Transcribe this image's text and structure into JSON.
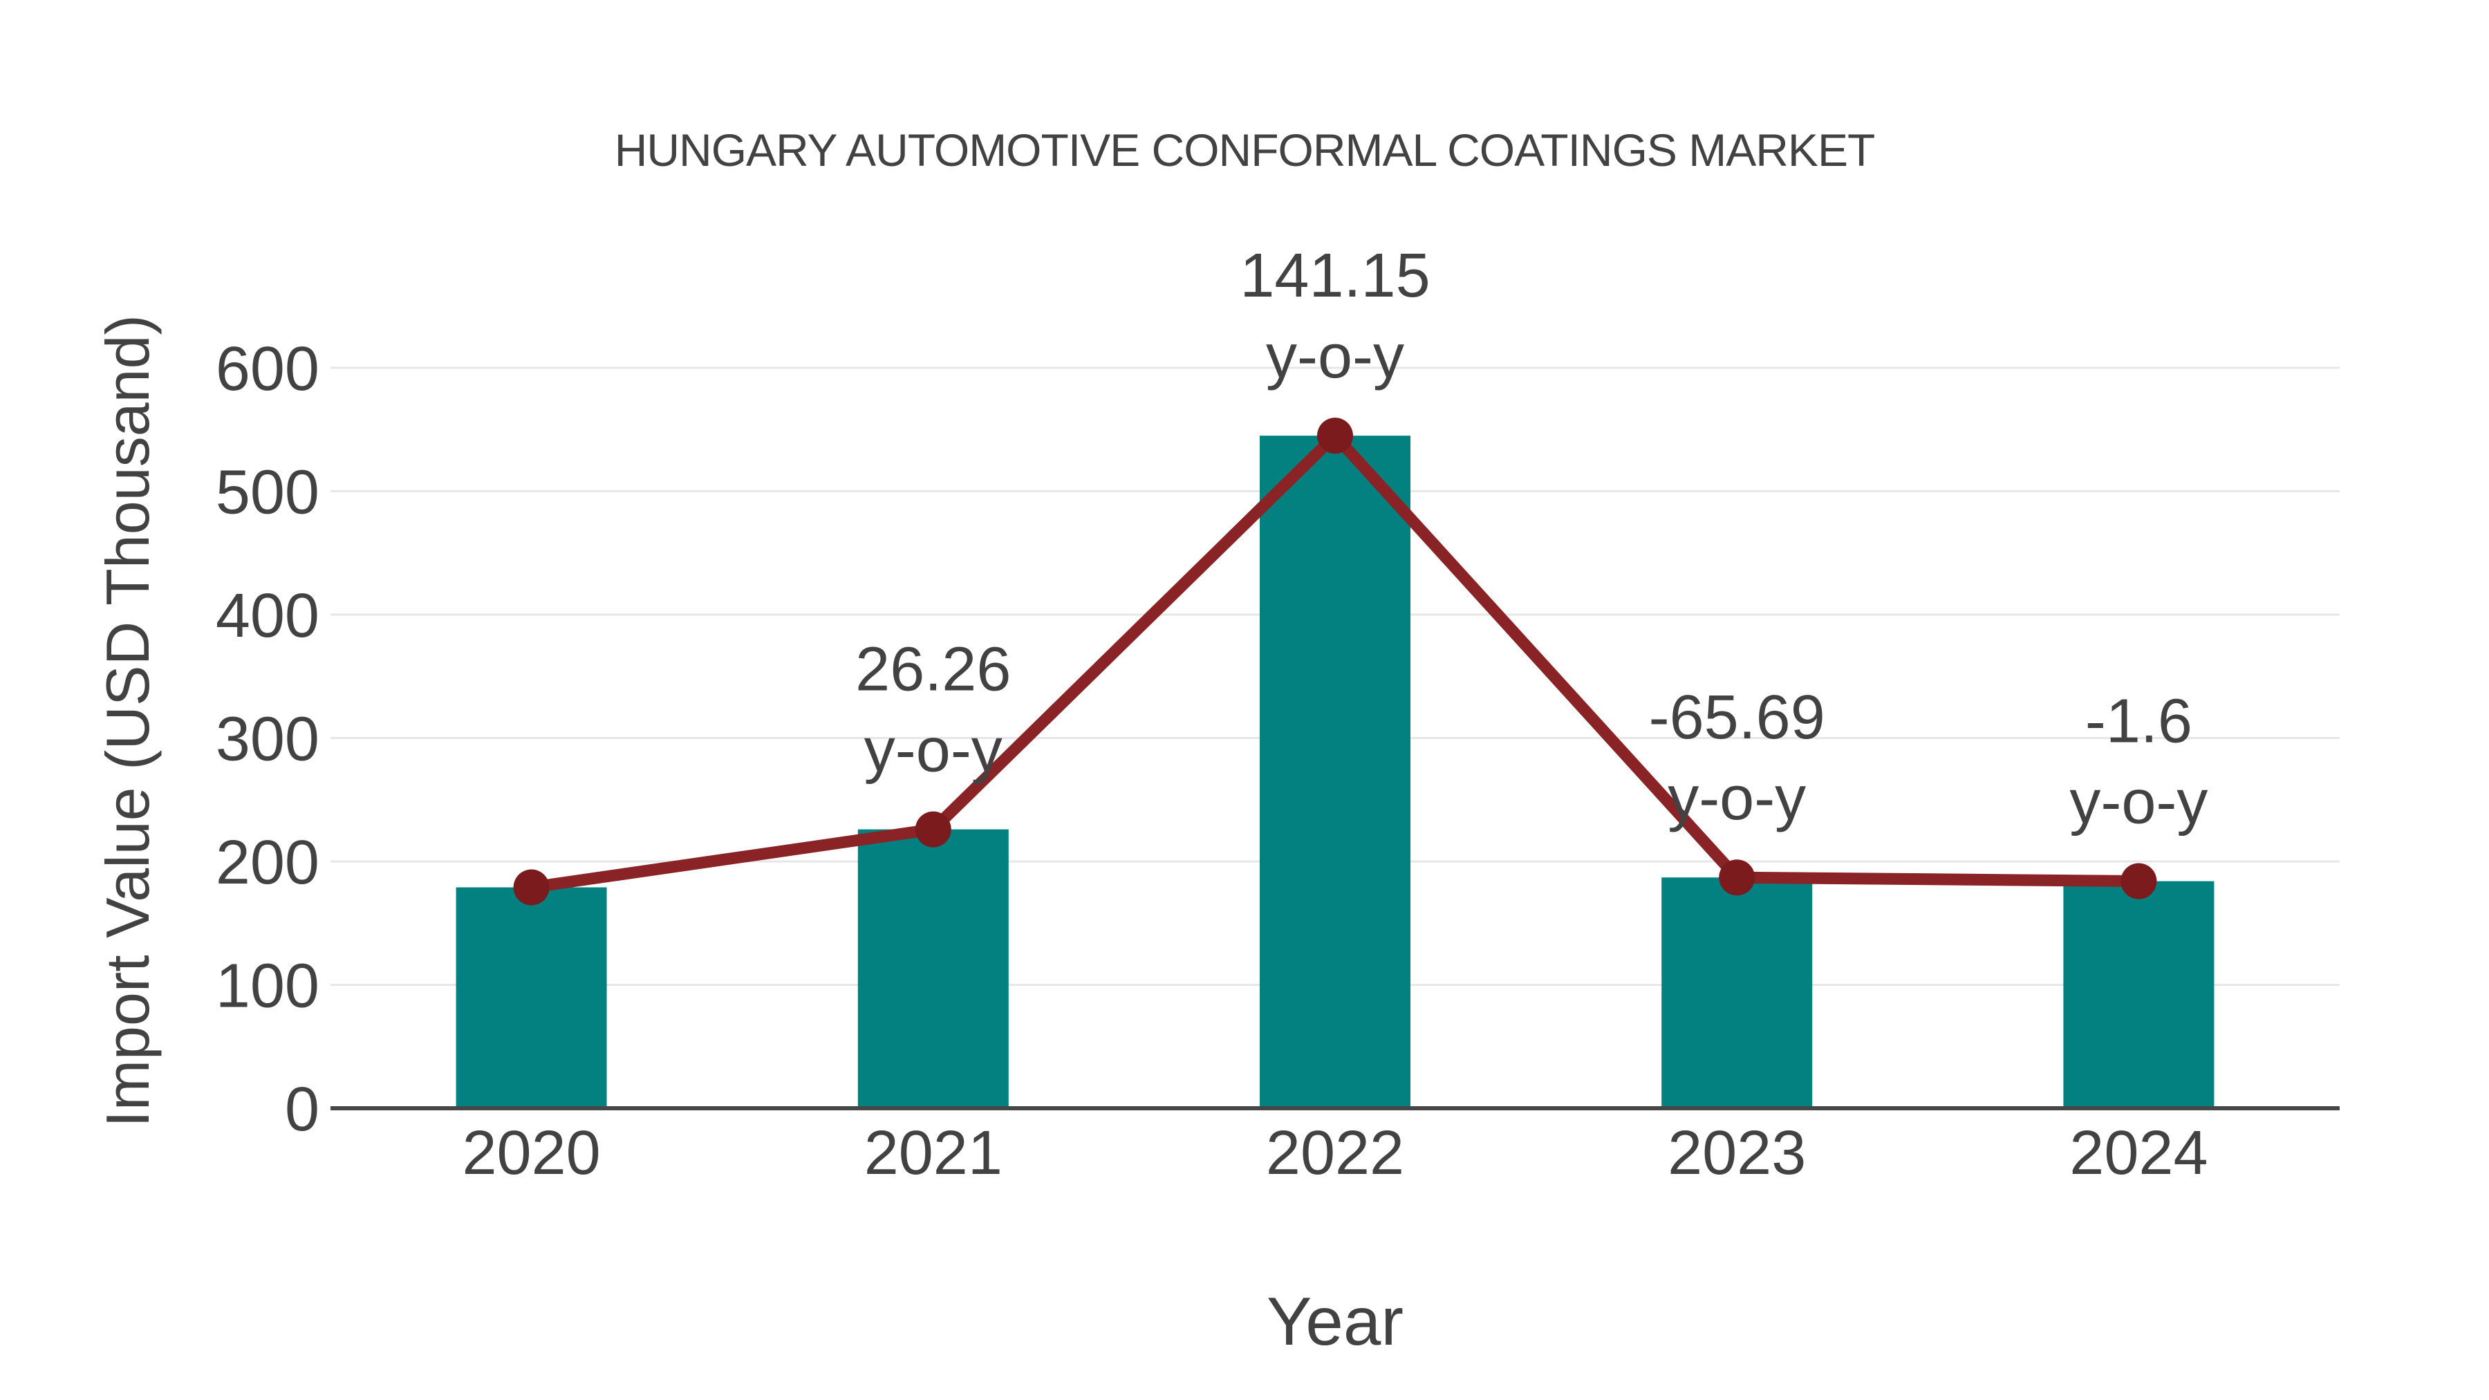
{
  "chart_data": {
    "type": "combo",
    "title": "HUNGARY AUTOMOTIVE CONFORMAL COATINGS MARKET",
    "xlabel": "Year",
    "ylabel": "Import Value (USD Thousand)",
    "categories": [
      "2020",
      "2021",
      "2022",
      "2023",
      "2024"
    ],
    "series": [
      {
        "name": "Import Value bars",
        "type": "bar",
        "values": [
          179,
          226,
          545,
          187,
          184
        ]
      },
      {
        "name": "Import Value trend line",
        "type": "line",
        "values": [
          179,
          226,
          545,
          187,
          184
        ]
      }
    ],
    "annotations": [
      {
        "category": "2021",
        "value_label": "26.26",
        "unit_label": "y-o-y"
      },
      {
        "category": "2022",
        "value_label": "141.15",
        "unit_label": "y-o-y"
      },
      {
        "category": "2023",
        "value_label": "-65.69",
        "unit_label": "y-o-y"
      },
      {
        "category": "2024",
        "value_label": "-1.6",
        "unit_label": "y-o-y"
      }
    ],
    "yoy_percent": {
      "2021": 26.26,
      "2022": 141.15,
      "2023": -65.69,
      "2024": -1.6
    },
    "yticks": [
      0,
      100,
      200,
      300,
      400,
      500,
      600
    ],
    "ylim": [
      0,
      600
    ],
    "grid": true,
    "legend": "none",
    "colors": {
      "bar": "#028180",
      "line": "#8a2326",
      "marker": "#7c1b1d",
      "text": "#424242",
      "grid": "#e7e7e7",
      "axis": "#474747",
      "background": "#ffffff"
    }
  }
}
